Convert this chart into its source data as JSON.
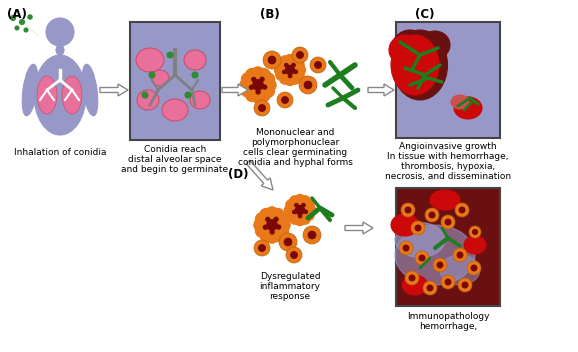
{
  "bg_color": "#ffffff",
  "label_A": "(A)",
  "label_B": "(B)",
  "label_C": "(C)",
  "label_D": "(D)",
  "text_A": "Inhalation of conidia",
  "text_box_b1": "Conidia reach",
  "text_box_b2": "distal alveolar space",
  "text_box_b3": "and begin to germinate",
  "text_B1": "Mononuclear and",
  "text_B2": "polymorphonuclear",
  "text_B3": "cells clear germinating",
  "text_B4": "conidia and hyphal forms",
  "text_C1": "Angioinvasive growth",
  "text_C2": "In tissue with hemorrhage,",
  "text_C3": "thrombosis, hypoxia,",
  "text_C4": "necrosis, and dissemination",
  "text_D1": "Dysregulated",
  "text_D2": "inflammatory",
  "text_D3": "response",
  "text_E1": "Immunopathology",
  "text_E2": "hemorrhage,",
  "body_color": "#9898c8",
  "lung_color": "#e8709a",
  "box_fill": "#9898c8",
  "box_edge": "#444444",
  "alveoli_color": "#e8709a",
  "conidia_green": "#2e8c2e",
  "conidia_orange": "#e87818",
  "cell_dark": "#7a0808",
  "hyphae_green": "#1e7d1e",
  "red_tissue": "#cc0808",
  "dark_red_bg": "#6a1010",
  "arrow_fill": "#ffffff",
  "arrow_edge": "#888888",
  "font_size_label": 8.5,
  "font_size_text": 6.5
}
